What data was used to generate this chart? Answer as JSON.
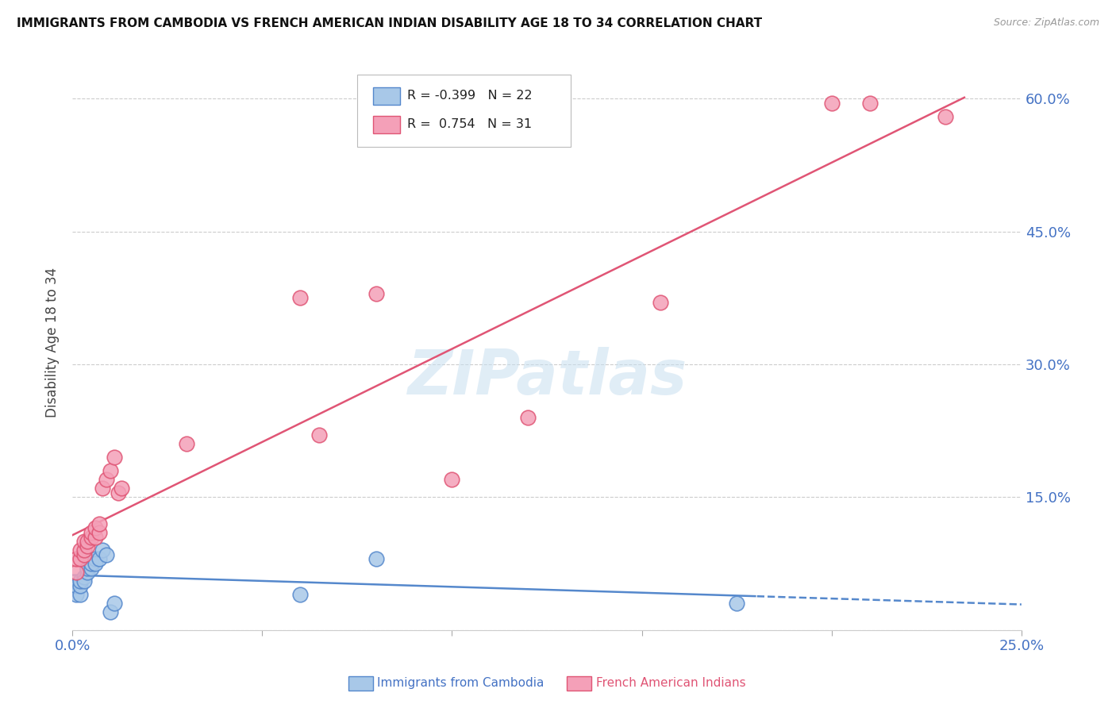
{
  "title": "IMMIGRANTS FROM CAMBODIA VS FRENCH AMERICAN INDIAN DISABILITY AGE 18 TO 34 CORRELATION CHART",
  "source": "Source: ZipAtlas.com",
  "ylabel_label": "Disability Age 18 to 34",
  "xlim": [
    0.0,
    0.25
  ],
  "ylim": [
    0.0,
    0.65
  ],
  "yticks": [
    0.0,
    0.15,
    0.3,
    0.45,
    0.6
  ],
  "ytick_labels": [
    "",
    "15.0%",
    "30.0%",
    "45.0%",
    "60.0%"
  ],
  "xticks": [
    0.0,
    0.05,
    0.1,
    0.15,
    0.2,
    0.25
  ],
  "xtick_labels": [
    "0.0%",
    "",
    "",
    "",
    "",
    "25.0%"
  ],
  "color_blue": "#a8c8e8",
  "color_pink": "#f4a0b8",
  "color_blue_line": "#5588cc",
  "color_pink_line": "#e05575",
  "color_blue_text": "#4472c4",
  "color_pink_text": "#e05575",
  "watermark": "ZIPatlas",
  "cambodia_x": [
    0.001,
    0.001,
    0.002,
    0.002,
    0.002,
    0.003,
    0.003,
    0.004,
    0.004,
    0.004,
    0.005,
    0.005,
    0.006,
    0.006,
    0.007,
    0.008,
    0.009,
    0.01,
    0.011,
    0.06,
    0.08,
    0.175
  ],
  "cambodia_y": [
    0.04,
    0.05,
    0.04,
    0.05,
    0.055,
    0.06,
    0.055,
    0.07,
    0.065,
    0.07,
    0.07,
    0.075,
    0.08,
    0.075,
    0.08,
    0.09,
    0.085,
    0.02,
    0.03,
    0.04,
    0.08,
    0.03
  ],
  "french_x": [
    0.001,
    0.001,
    0.002,
    0.002,
    0.003,
    0.003,
    0.003,
    0.004,
    0.004,
    0.005,
    0.005,
    0.006,
    0.006,
    0.007,
    0.007,
    0.008,
    0.009,
    0.01,
    0.011,
    0.012,
    0.013,
    0.03,
    0.06,
    0.065,
    0.08,
    0.1,
    0.12,
    0.155,
    0.2,
    0.21,
    0.23
  ],
  "french_y": [
    0.065,
    0.08,
    0.08,
    0.09,
    0.085,
    0.09,
    0.1,
    0.095,
    0.1,
    0.105,
    0.11,
    0.105,
    0.115,
    0.11,
    0.12,
    0.16,
    0.17,
    0.18,
    0.195,
    0.155,
    0.16,
    0.21,
    0.375,
    0.22,
    0.38,
    0.17,
    0.24,
    0.37,
    0.595,
    0.595,
    0.58
  ]
}
